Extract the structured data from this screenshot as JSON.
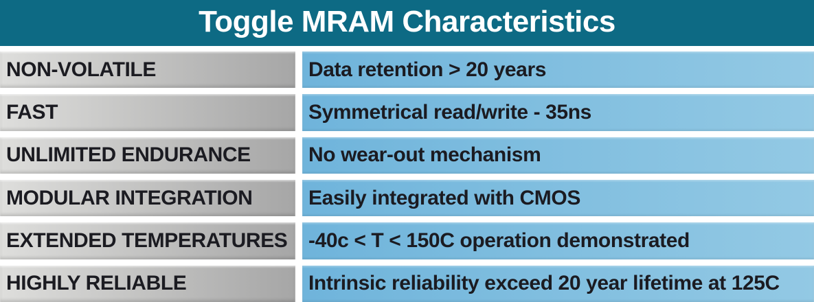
{
  "header": {
    "title": "Toggle MRAM Characteristics"
  },
  "table": {
    "rows": [
      {
        "label": "NON-VOLATILE",
        "value": "Data retention > 20 years"
      },
      {
        "label": "FAST",
        "value": "Symmetrical read/write - 35ns"
      },
      {
        "label": "UNLIMITED ENDURANCE",
        "value": "No wear-out mechanism"
      },
      {
        "label": "MODULAR INTEGRATION",
        "value": "Easily integrated with CMOS"
      },
      {
        "label": "EXTENDED TEMPERATURES",
        "value": "-40c < T < 150C operation demonstrated"
      },
      {
        "label": "HIGHLY RELIABLE",
        "value": "Intrinsic reliability exceed 20 year lifetime at 125C"
      }
    ]
  },
  "colors": {
    "header_bg": "#0d6a84",
    "header_text": "#ffffff",
    "label_grad_start": "#dededc",
    "label_grad_end": "#a6a6a6",
    "value_grad_start": "#6fb4db",
    "value_grad_end": "#93c9e4",
    "cell_text": "#1b1b21",
    "page_bg": "#ffffff"
  },
  "chart_data": {
    "type": "table",
    "title": "Toggle MRAM Characteristics",
    "rows": [
      [
        "NON-VOLATILE",
        "Data retention > 20 years"
      ],
      [
        "FAST",
        "Symmetrical read/write - 35ns"
      ],
      [
        "UNLIMITED ENDURANCE",
        "No wear-out mechanism"
      ],
      [
        "MODULAR INTEGRATION",
        "Easily integrated with CMOS"
      ],
      [
        "EXTENDED TEMPERATURES",
        "-40c < T < 150C operation demonstrated"
      ],
      [
        "HIGHLY RELIABLE",
        "Intrinsic reliability exceed 20 year lifetime at 125C"
      ]
    ]
  }
}
